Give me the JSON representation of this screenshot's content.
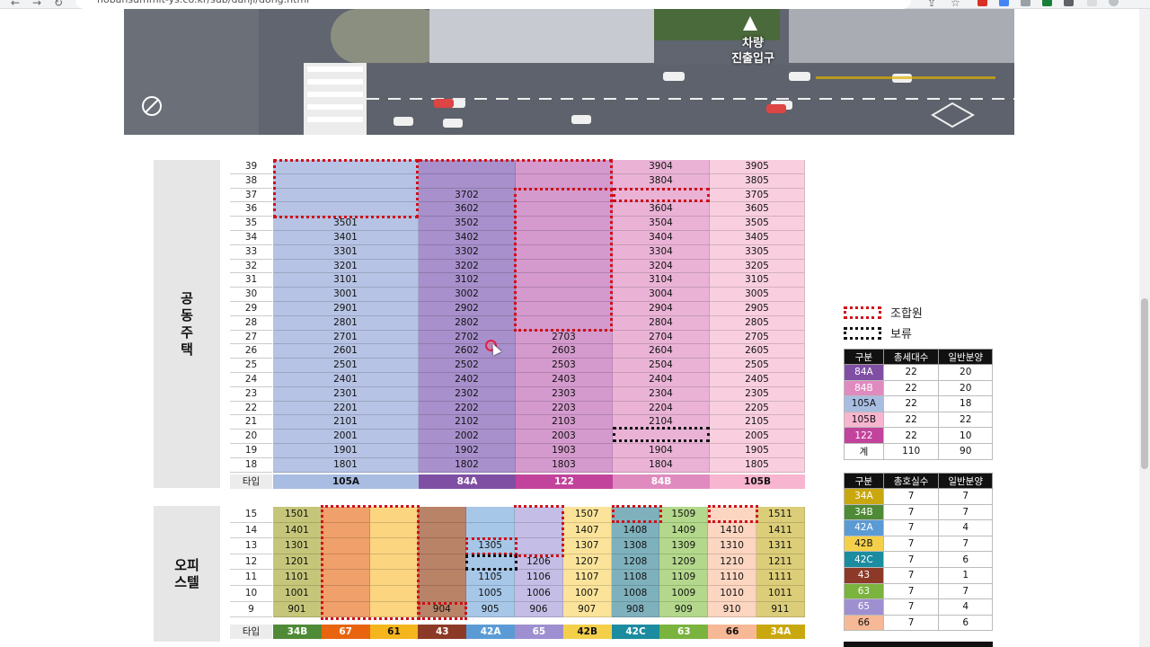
{
  "browser": {
    "url": "hobansummit-ys.co.kr/sub/danji/dong.html"
  },
  "map": {
    "label_line1": "차량",
    "label_line2": "진출입구"
  },
  "apartment": {
    "section_label": "공\n동\n주\n택",
    "type_row_label": "타입",
    "floors": [
      "39",
      "38",
      "37",
      "36",
      "35",
      "34",
      "33",
      "32",
      "31",
      "30",
      "29",
      "28",
      "27",
      "26",
      "25",
      "24",
      "23",
      "22",
      "21",
      "20",
      "19",
      "18"
    ],
    "columns": [
      {
        "type": "105A",
        "color": "#b6c3e4",
        "type_color": "#a9bde2",
        "type_text": "#111",
        "cells": [
          "",
          "",
          "",
          "",
          "3501",
          "3401",
          "3301",
          "3201",
          "3101",
          "3001",
          "2901",
          "2801",
          "2701",
          "2601",
          "2501",
          "2401",
          "2301",
          "2201",
          "2101",
          "2001",
          "1901",
          "1801"
        ]
      },
      {
        "type": "84A",
        "color": "#a890cc",
        "type_color": "#7f4fa4",
        "type_text": "#fff",
        "cells": [
          "",
          "",
          "3702",
          "3602",
          "3502",
          "3402",
          "3302",
          "3202",
          "3102",
          "3002",
          "2902",
          "2802",
          "2702",
          "2602",
          "2502",
          "2402",
          "2302",
          "2202",
          "2102",
          "2002",
          "1902",
          "1802"
        ]
      },
      {
        "type": "122",
        "color": "#d49acd",
        "type_color": "#c2439b",
        "type_text": "#fff",
        "cells": [
          "",
          "",
          "",
          "",
          "",
          "",
          "",
          "",
          "",
          "",
          "",
          "",
          "2703",
          "2603",
          "2503",
          "2403",
          "2303",
          "2203",
          "2103",
          "2003",
          "1903",
          "1803"
        ]
      },
      {
        "type": "84B",
        "color": "#eab3d6",
        "type_color": "#e08bc0",
        "type_text": "#fff",
        "cells": [
          "3904",
          "3804",
          "",
          "3604",
          "3504",
          "3404",
          "3304",
          "3204",
          "3104",
          "3004",
          "2904",
          "2804",
          "2704",
          "2604",
          "2504",
          "2404",
          "2304",
          "2204",
          "2104",
          "",
          "1904",
          "1804"
        ]
      },
      {
        "type": "105B",
        "color": "#f9cfe0",
        "type_color": "#f7b5cf",
        "type_text": "#111",
        "cells": [
          "3905",
          "3805",
          "3705",
          "3605",
          "3505",
          "3405",
          "3305",
          "3205",
          "3105",
          "3005",
          "2905",
          "2805",
          "2705",
          "2605",
          "2505",
          "2405",
          "2305",
          "2205",
          "2105",
          "2005",
          "1905",
          "1805"
        ]
      }
    ]
  },
  "officetel": {
    "section_label": "오피\n스텔",
    "type_row_label": "타입",
    "floors": [
      "15",
      "14",
      "13",
      "12",
      "11",
      "10",
      "9"
    ],
    "columns": [
      {
        "type": "34B",
        "color": "#c6c67a",
        "type_color": "#4f8a36",
        "cells": [
          "1501",
          "1401",
          "1301",
          "1201",
          "1101",
          "1001",
          "901"
        ]
      },
      {
        "type": "67",
        "color": "#f0a06a",
        "type_color": "#e8640f",
        "cells": [
          "",
          "",
          "",
          "",
          "",
          "",
          ""
        ]
      },
      {
        "type": "61",
        "color": "#fbd580",
        "type_color": "#f5b51d",
        "cells": [
          "",
          "",
          "",
          "",
          "",
          "",
          ""
        ]
      },
      {
        "type": "43",
        "color": "#b98367",
        "type_color": "#8c3a27",
        "cells": [
          "",
          "",
          "",
          "",
          "",
          "",
          "904"
        ]
      },
      {
        "type": "42A",
        "color": "#a7c7e8",
        "type_color": "#5b9bd5",
        "cells": [
          "",
          "",
          "1305",
          "",
          "1105",
          "1005",
          "905"
        ]
      },
      {
        "type": "65",
        "color": "#c4bde6",
        "type_color": "#9e8fd0",
        "cells": [
          "",
          "",
          "",
          "1206",
          "1106",
          "1006",
          "906"
        ]
      },
      {
        "type": "42B",
        "color": "#fbe39a",
        "type_color": "#f4d04a",
        "cells": [
          "1507",
          "1407",
          "1307",
          "1207",
          "1107",
          "1007",
          "907"
        ]
      },
      {
        "type": "42C",
        "color": "#7fb1bd",
        "type_color": "#1c8ca0",
        "cells": [
          "",
          "1408",
          "1308",
          "1208",
          "1108",
          "1008",
          "908"
        ]
      },
      {
        "type": "63",
        "color": "#b3d88c",
        "type_color": "#7ab33d",
        "cells": [
          "1509",
          "1409",
          "1309",
          "1209",
          "1109",
          "1009",
          "909"
        ]
      },
      {
        "type": "66",
        "color": "#fcd6c1",
        "type_color": "#f7b895",
        "cells": [
          "",
          "1410",
          "1310",
          "1210",
          "1110",
          "1010",
          "910"
        ]
      },
      {
        "type": "34A",
        "color": "#dccd79",
        "type_color": "#c9a80f",
        "cells": [
          "1511",
          "1411",
          "1311",
          "1211",
          "1111",
          "1011",
          "911"
        ]
      }
    ]
  },
  "legend": {
    "union_label": "조합원",
    "reserve_label": "보류"
  },
  "apt_table": {
    "headers": [
      "구분",
      "총세대수",
      "일반분양"
    ],
    "rows": [
      {
        "type": "84A",
        "color": "#7f4fa4",
        "total": "22",
        "general": "20"
      },
      {
        "type": "84B",
        "color": "#e08bc0",
        "total": "22",
        "general": "20"
      },
      {
        "type": "105A",
        "color": "#a9bde2",
        "total": "22",
        "general": "18"
      },
      {
        "type": "105B",
        "color": "#f7b5cf",
        "total": "22",
        "general": "22"
      },
      {
        "type": "122",
        "color": "#c2439b",
        "total": "22",
        "general": "10"
      },
      {
        "type": "계",
        "color": "#ffffff",
        "total": "110",
        "general": "90"
      }
    ]
  },
  "off_table": {
    "headers": [
      "구분",
      "총호실수",
      "일반분양"
    ],
    "rows": [
      {
        "type": "34A",
        "color": "#c9a80f",
        "total": "7",
        "general": "7"
      },
      {
        "type": "34B",
        "color": "#4f8a36",
        "total": "7",
        "general": "7"
      },
      {
        "type": "42A",
        "color": "#5b9bd5",
        "total": "7",
        "general": "4"
      },
      {
        "type": "42B",
        "color": "#f4d04a",
        "total": "7",
        "general": "7"
      },
      {
        "type": "42C",
        "color": "#1c8ca0",
        "total": "7",
        "general": "6"
      },
      {
        "type": "43",
        "color": "#8c3a27",
        "total": "7",
        "general": "1"
      },
      {
        "type": "63",
        "color": "#7ab33d",
        "total": "7",
        "general": "7"
      },
      {
        "type": "65",
        "color": "#9e8fd0",
        "total": "7",
        "general": "4"
      },
      {
        "type": "66",
        "color": "#f7b895",
        "total": "7",
        "general": "6"
      }
    ]
  }
}
